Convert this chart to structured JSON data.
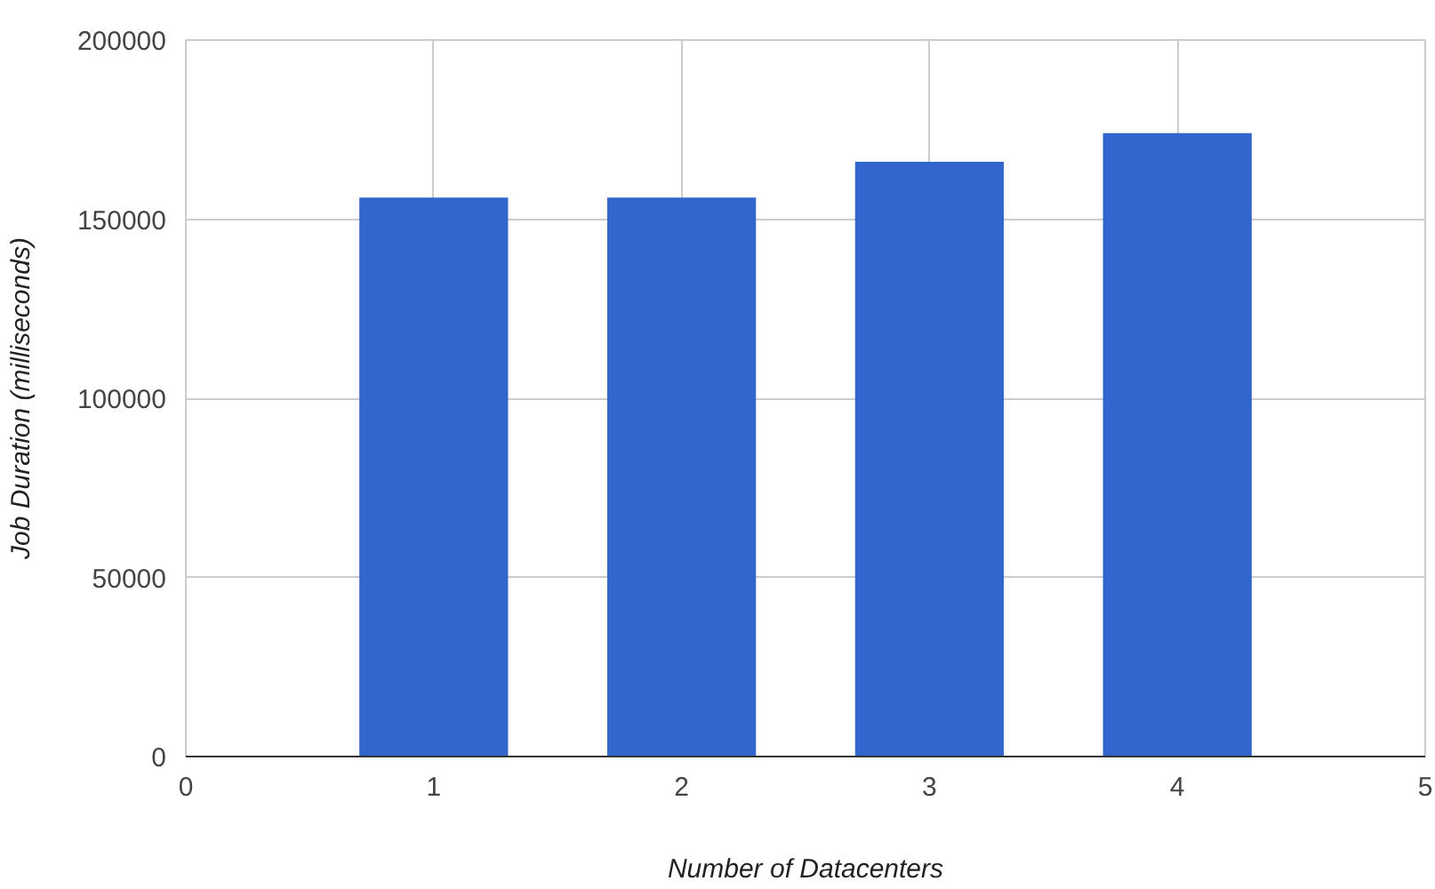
{
  "chart_data": {
    "type": "bar",
    "xlabel": "Number of Datacenters",
    "ylabel": "Job Duration (milliseconds)",
    "x": [
      1,
      2,
      3,
      4
    ],
    "values": [
      156000,
      156000,
      166000,
      174000
    ],
    "color": "#3366cc",
    "xlim": [
      0,
      5
    ],
    "xticks": [
      0,
      1,
      2,
      3,
      4,
      5
    ],
    "ylim": [
      0,
      200000
    ],
    "yticks": [
      0,
      50000,
      100000,
      150000,
      200000
    ],
    "grid": true
  }
}
